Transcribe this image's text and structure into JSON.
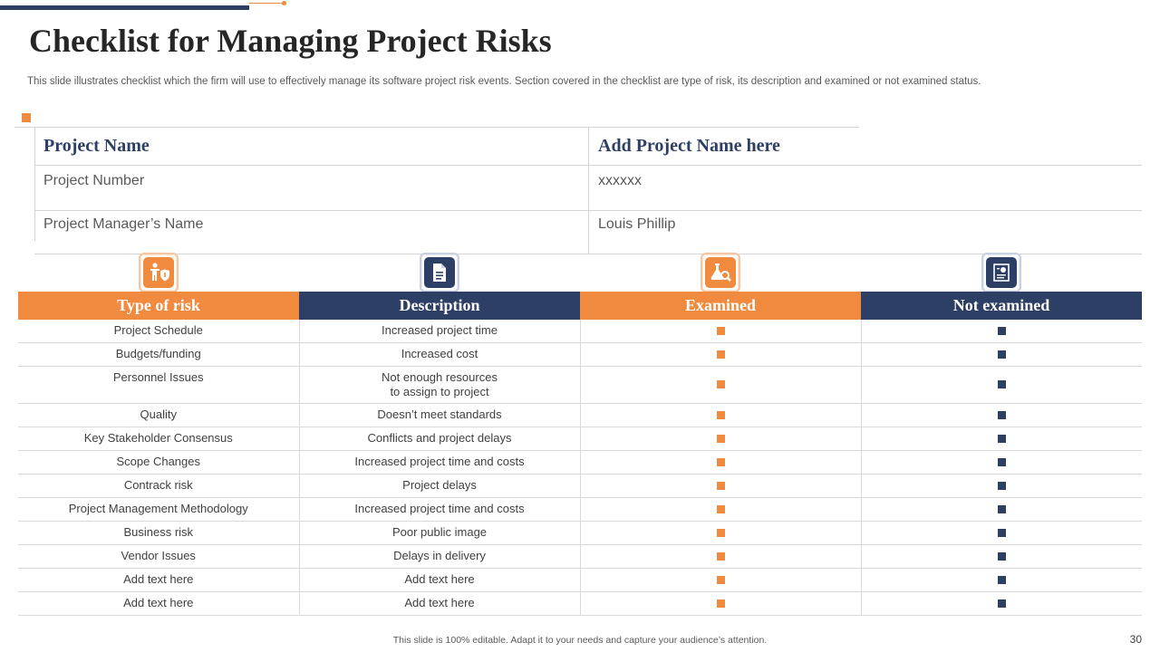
{
  "title": "Checklist for Managing Project Risks",
  "subtitle": "This slide illustrates checklist which the firm will use to effectively manage its software project risk events. Section covered in the checklist are type of risk, its description and examined or not examined status.",
  "info_table": {
    "header": [
      "Project Name",
      "Add Project Name here"
    ],
    "rows": [
      [
        "Project Number",
        "xxxxxx"
      ],
      [
        "Project Manager’s Name",
        "Louis Phillip"
      ]
    ]
  },
  "icons": [
    "worker-shield-icon",
    "document-icon",
    "lab-search-icon",
    "certificate-icon"
  ],
  "risk_table": {
    "columns": [
      "Type of risk",
      "Description",
      "Examined",
      "Not examined"
    ],
    "rows": [
      [
        "Project Schedule",
        "Increased  project time"
      ],
      [
        "Budgets/funding",
        "Increased  cost"
      ],
      [
        "Personnel Issues",
        "Not enough  resources\nto assign to project"
      ],
      [
        "Quality",
        "Doesn’t meet standards"
      ],
      [
        "Key Stakeholder  Consensus",
        "Conflicts and project delays"
      ],
      [
        "Scope Changes",
        "Increased  project time and costs"
      ],
      [
        "Contrack  risk",
        "Project delays"
      ],
      [
        "Project Management  Methodology",
        "Increased  project time and costs"
      ],
      [
        "Business risk",
        "Poor public image"
      ],
      [
        "Vendor Issues",
        "Delays in delivery"
      ],
      [
        "Add text here",
        "Add text here"
      ],
      [
        "Add text here",
        "Add text here"
      ]
    ]
  },
  "colors": {
    "orange": "#ef8a3e",
    "navy": "#2e3f66"
  },
  "footer": "This slide is 100% editable.  Adapt it to your needs and capture your audience’s attention.",
  "page_number": "30"
}
